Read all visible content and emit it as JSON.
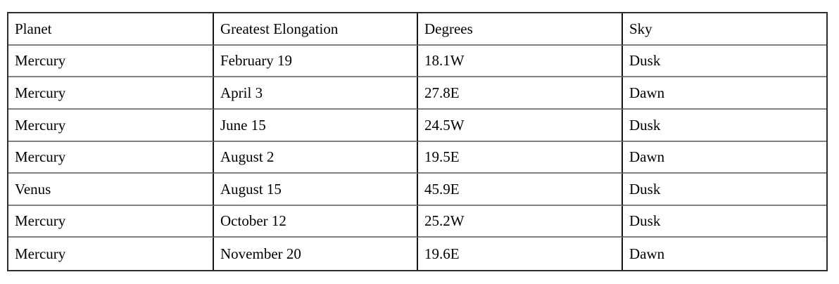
{
  "table": {
    "columns": [
      "Planet",
      "Greatest Elongation",
      "Degrees",
      "Sky"
    ],
    "rows": [
      [
        "Mercury",
        "February 19",
        "18.1W",
        "Dusk"
      ],
      [
        "Mercury",
        "April 3",
        "27.8E",
        "Dawn"
      ],
      [
        "Mercury",
        "June 15",
        "24.5W",
        "Dusk"
      ],
      [
        "Mercury",
        "August 2",
        "19.5E",
        "Dawn"
      ],
      [
        "Venus",
        "August 15",
        "45.9E",
        "Dusk"
      ],
      [
        "Mercury",
        "October 12",
        "25.2W",
        "Dusk"
      ],
      [
        "Mercury",
        "November 20",
        "19.6E",
        "Dawn"
      ]
    ]
  },
  "colors": {
    "outer_border": "#2e2e2e",
    "vertical_rule": "#161616",
    "horizontal_rule": "#808080",
    "text": "#000000",
    "background": "#ffffff"
  },
  "chart_data": {
    "type": "table",
    "title": "",
    "categories": [
      "Planet",
      "Greatest Elongation",
      "Degrees",
      "Sky"
    ],
    "series": [
      {
        "name": "Mercury",
        "values": [
          "February 19",
          "18.1W",
          "Dusk"
        ]
      },
      {
        "name": "Mercury",
        "values": [
          "April 3",
          "27.8E",
          "Dawn"
        ]
      },
      {
        "name": "Mercury",
        "values": [
          "June 15",
          "24.5W",
          "Dusk"
        ]
      },
      {
        "name": "Mercury",
        "values": [
          "August 2",
          "19.5E",
          "Dawn"
        ]
      },
      {
        "name": "Venus",
        "values": [
          "August 15",
          "45.9E",
          "Dusk"
        ]
      },
      {
        "name": "Mercury",
        "values": [
          "October 12",
          "25.2W",
          "Dusk"
        ]
      },
      {
        "name": "Mercury",
        "values": [
          "November 20",
          "19.6E",
          "Dawn"
        ]
      }
    ]
  }
}
